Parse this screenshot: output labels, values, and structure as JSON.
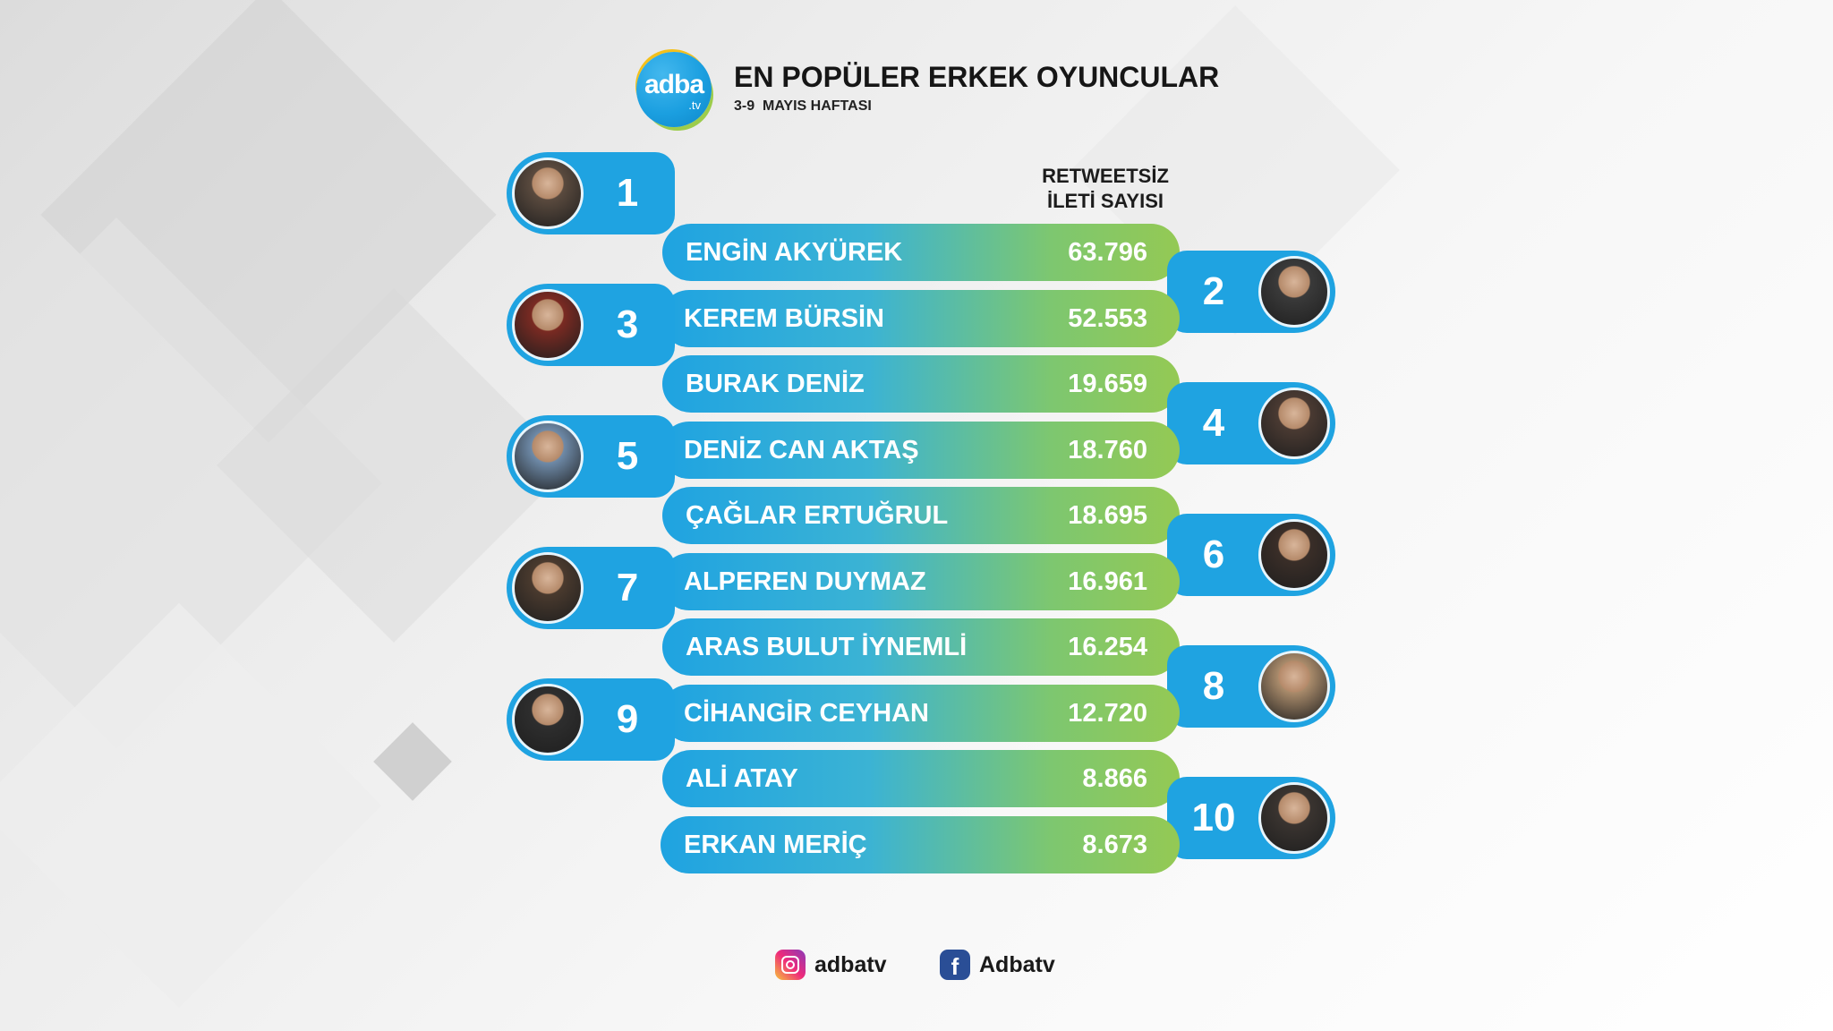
{
  "header": {
    "logo_main": "adba",
    "logo_sub": ".tv",
    "title": "EN POPÜLER ERKEK OYUNCULAR",
    "subtitle": "3-9  MAYIS HAFTASI",
    "column_header_line1": "RETWEETSİZ",
    "column_header_line2": "İLETİ SAYISI"
  },
  "chart_data": {
    "type": "table",
    "title": "EN POPÜLER ERKEK OYUNCULAR",
    "subtitle": "3-9  MAYIS HAFTASI",
    "value_column": "RETWEETSİZ İLETİ SAYISI",
    "rows": [
      {
        "rank": "1",
        "name": "ENGİN AKYÜREK",
        "value_label": "63.796",
        "value": 63796
      },
      {
        "rank": "2",
        "name": "KEREM BÜRSİN",
        "value_label": "52.553",
        "value": 52553
      },
      {
        "rank": "3",
        "name": "BURAK DENİZ",
        "value_label": "19.659",
        "value": 19659
      },
      {
        "rank": "4",
        "name": "DENİZ CAN AKTAŞ",
        "value_label": "18.760",
        "value": 18760
      },
      {
        "rank": "5",
        "name": "ÇAĞLAR ERTUĞRUL",
        "value_label": "18.695",
        "value": 18695
      },
      {
        "rank": "6",
        "name": "ALPEREN DUYMAZ",
        "value_label": "16.961",
        "value": 16961
      },
      {
        "rank": "7",
        "name": "ARAS BULUT İYNEMLİ",
        "value_label": "16.254",
        "value": 16254
      },
      {
        "rank": "8",
        "name": "CİHANGİR CEYHAN",
        "value_label": "12.720",
        "value": 12720
      },
      {
        "rank": "9",
        "name": "ALİ ATAY",
        "value_label": "8.866",
        "value": 8866
      },
      {
        "rank": "10",
        "name": "ERKAN MERİÇ",
        "value_label": "8.673",
        "value": 8673
      }
    ]
  },
  "footer": {
    "instagram_label": "adbatv",
    "instagram_icon": "instagram-icon",
    "facebook_label": "Adbatv",
    "facebook_icon": "facebook-icon"
  },
  "colors": {
    "accent_blue": "#1fa3e1",
    "accent_green": "#94c954"
  }
}
